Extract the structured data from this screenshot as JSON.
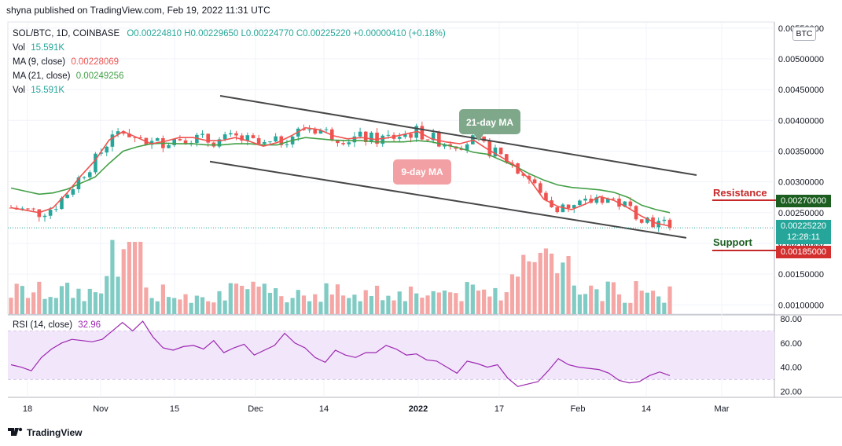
{
  "publisher_line": "shyna published on TradingView.com, Feb 19, 2022 11:31 UTC",
  "footer_brand": "TradingView",
  "legend": {
    "symbol": "SOL/BTC, 1D, COINBASE",
    "ohlc": "O0.00224810  H0.00229650  L0.00224770  C0.00225220  +0.00000410 (+0.18%)",
    "vol1_label": "Vol",
    "vol1_value": "15.591K",
    "ma9_label": "MA (9, close)",
    "ma9_value": "0.00228069",
    "ma21_label": "MA (21, close)",
    "ma21_value": "0.00249256",
    "vol2_label": "Vol",
    "vol2_value": "15.591K"
  },
  "currency_badge": "BTC",
  "price_axis": [
    "0.00550000",
    "0.00500000",
    "0.00450000",
    "0.00400000",
    "0.00350000",
    "0.00300000",
    "0.00250000",
    "0.00200000",
    "0.00150000",
    "0.00100000"
  ],
  "price_tags": {
    "resistance_value": "0.00270000",
    "last_price": "0.00225220",
    "countdown": "12:28:11",
    "support_value": "0.00185000"
  },
  "annotations": {
    "ma21_bubble": "21-day MA",
    "ma9_bubble": "9-day MA",
    "resistance": "Resistance",
    "support": "Support"
  },
  "rsi": {
    "label": "RSI (14, close)",
    "value": "32.96",
    "axis": [
      "80.00",
      "60.00",
      "40.00",
      "20.00"
    ]
  },
  "time_axis": [
    "18",
    "Nov",
    "15",
    "Dec",
    "14",
    "2022",
    "17",
    "Feb",
    "14",
    "Mar"
  ],
  "colors": {
    "up": "#26a69a",
    "down": "#ef5350",
    "ma9": "#ef5350",
    "ma21": "#43a047",
    "rsi": "#9c27b0",
    "rsi_band": "#f2e6fb",
    "channel": "#474747",
    "resistance": "#c62828",
    "support": "#1b5e20",
    "text": "#131722"
  },
  "chart_data": {
    "type": "candlestick",
    "instrument": "SOL/BTC",
    "interval": "1D",
    "exchange": "COINBASE",
    "last_close": 0.0022522,
    "ma9_last": 0.00228069,
    "ma21_last": 0.00249256,
    "resistance_level": 0.0027,
    "support_level": 0.00185,
    "y_range": [
      0.00085,
      0.0056
    ],
    "rsi_last": 32.96,
    "rsi_range": [
      15,
      82
    ],
    "rsi_band": [
      30,
      70
    ],
    "ma9_path": [
      0.00258,
      0.00254,
      0.0025,
      0.00258,
      0.00282,
      0.0031,
      0.00335,
      0.00368,
      0.00382,
      0.00372,
      0.00362,
      0.00366,
      0.00372,
      0.00372,
      0.00367,
      0.00367,
      0.00372,
      0.00366,
      0.00358,
      0.00364,
      0.00375,
      0.00388,
      0.00385,
      0.00375,
      0.0037,
      0.00372,
      0.00369,
      0.00372,
      0.00377,
      0.00382,
      0.0037,
      0.00365,
      0.00362,
      0.00368,
      0.00353,
      0.0034,
      0.00326,
      0.00304,
      0.00272,
      0.0026,
      0.00255,
      0.00264,
      0.00276,
      0.0027,
      0.00258,
      0.00244,
      0.00233,
      0.00228
    ],
    "ma21_path": [
      0.0029,
      0.00285,
      0.0028,
      0.00282,
      0.00288,
      0.00298,
      0.00308,
      0.0033,
      0.0035,
      0.00357,
      0.00362,
      0.00363,
      0.00362,
      0.00362,
      0.0036,
      0.0036,
      0.00362,
      0.00362,
      0.0036,
      0.0036,
      0.00367,
      0.00372,
      0.0037,
      0.00368,
      0.00367,
      0.00367,
      0.00365,
      0.00365,
      0.00365,
      0.00367,
      0.00365,
      0.0036,
      0.00355,
      0.00348,
      0.00345,
      0.00335,
      0.00325,
      0.00313,
      0.00303,
      0.00295,
      0.00291,
      0.00289,
      0.00287,
      0.00283,
      0.00275,
      0.00262,
      0.00255,
      0.0025
    ],
    "channel_upper": [
      [
        0.0044,
        0.00311
      ]
    ],
    "channel_lower": [
      [
        0.00333,
        0.00209
      ]
    ],
    "rsi_path": [
      42,
      40,
      37,
      48,
      55,
      60,
      63,
      62,
      61,
      63,
      70,
      77,
      70,
      78,
      65,
      56,
      54,
      57,
      58,
      55,
      62,
      52,
      56,
      59,
      50,
      54,
      58,
      68,
      60,
      56,
      48,
      44,
      54,
      50,
      48,
      52,
      52,
      58,
      55,
      50,
      51,
      46,
      45,
      40,
      35,
      45,
      43,
      40,
      42,
      31,
      24,
      26,
      28,
      37,
      47,
      42,
      40,
      39,
      38,
      35,
      29,
      27,
      28,
      33,
      36,
      33
    ]
  }
}
